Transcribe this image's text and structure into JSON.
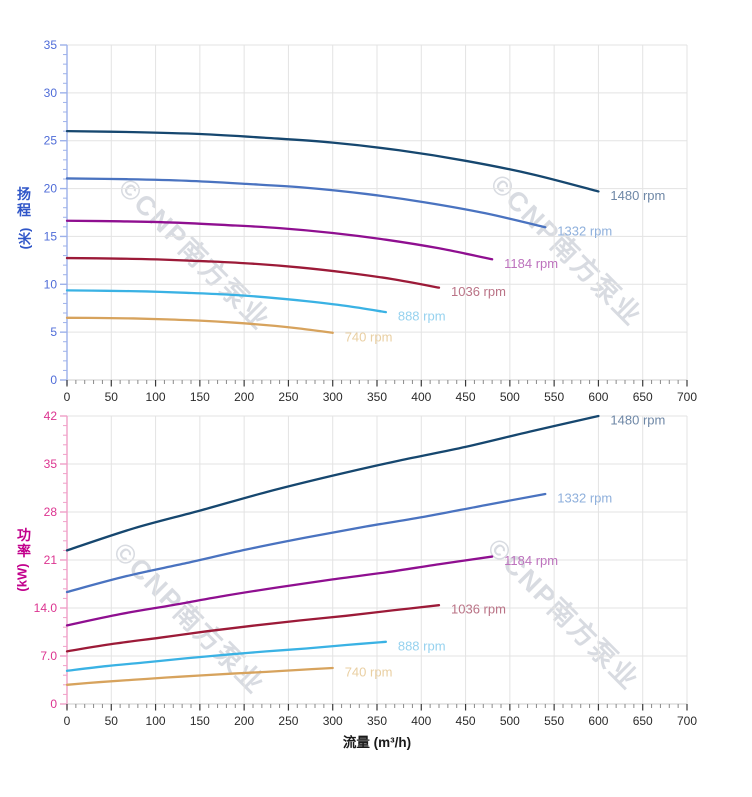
{
  "watermark": {
    "text": "©CNP南方泵业",
    "color": "rgba(125,135,155,0.30)"
  },
  "labels": {
    "head_title": "扬程",
    "head_unit": "(米)",
    "power_title": "功率",
    "power_unit": "(kW)",
    "flow_title": "流量 (m³/h)"
  },
  "style": {
    "grid_color": "#e3e3e3",
    "x_axis_line_color": "#cccccc",
    "x_major_tick_color": "#3a3a3a",
    "x_minor_tick_color": "#8a8a8a",
    "x_tick_label_color": "#2b2b2b",
    "flow_title_color": "#1a1a1a"
  },
  "chart_data": [
    {
      "type": "line",
      "title": "",
      "xlabel": "流量 (m³/h)",
      "ylabel": "扬程 (米)",
      "xlim": [
        0,
        700
      ],
      "ylim": [
        0,
        35
      ],
      "grid": true,
      "legend_position": "inline-right-of-curve-end",
      "x_tick_labels": [
        "0",
        "50",
        "100",
        "150",
        "200",
        "250",
        "300",
        "350",
        "400",
        "450",
        "500",
        "550",
        "600",
        "650",
        "700"
      ],
      "x_tick_values": [
        0,
        50,
        100,
        150,
        200,
        250,
        300,
        350,
        400,
        450,
        500,
        550,
        600,
        650,
        700
      ],
      "x_minor_step": 10,
      "y_tick_labels": [
        "0",
        "5",
        "10",
        "15",
        "20",
        "25",
        "30",
        "35"
      ],
      "y_tick_values": [
        0,
        5,
        10,
        15,
        20,
        25,
        30,
        35
      ],
      "y_minor_step": 1,
      "style": {
        "title_color": "#3056c8",
        "tick_label_color": "#4f6cd8",
        "axis_color": "#9db1ea"
      },
      "series": [
        {
          "name": "1480 rpm",
          "rpm": 1480,
          "color": "#16476f",
          "label_color": "#6e87a6",
          "x": [
            0,
            75,
            150,
            225,
            300,
            375,
            450,
            525,
            600
          ],
          "y": [
            26.0,
            25.9,
            25.7,
            25.3,
            24.8,
            24.0,
            22.9,
            21.5,
            19.7
          ]
        },
        {
          "name": "1332 rpm",
          "rpm": 1332,
          "color": "#4a73c0",
          "label_color": "#8fb0dc",
          "x": [
            0,
            67.5,
            135,
            202.5,
            270,
            337.5,
            405,
            472.5,
            540
          ],
          "y": [
            21.06,
            20.98,
            20.82,
            20.49,
            20.09,
            19.44,
            18.55,
            17.42,
            15.96
          ]
        },
        {
          "name": "1184 rpm",
          "rpm": 1184,
          "color": "#8f0f90",
          "label_color": "#bd72bd",
          "x": [
            0,
            60,
            120,
            180,
            240,
            300,
            360,
            420,
            480
          ],
          "y": [
            16.64,
            16.58,
            16.45,
            16.19,
            15.87,
            15.36,
            14.66,
            13.76,
            12.61
          ]
        },
        {
          "name": "1036 rpm",
          "rpm": 1036,
          "color": "#9c1a38",
          "label_color": "#ba7386",
          "x": [
            0,
            52.5,
            105,
            157.5,
            210,
            262.5,
            315,
            367.5,
            420
          ],
          "y": [
            12.74,
            12.69,
            12.59,
            12.4,
            12.15,
            11.76,
            11.22,
            10.54,
            9.65
          ]
        },
        {
          "name": "888 rpm",
          "rpm": 888,
          "color": "#3ab2e4",
          "label_color": "#96d2ef",
          "x": [
            0,
            45,
            90,
            135,
            180,
            225,
            270,
            315,
            360
          ],
          "y": [
            9.36,
            9.32,
            9.25,
            9.11,
            8.93,
            8.64,
            8.24,
            7.74,
            7.09
          ]
        },
        {
          "name": "740 rpm",
          "rpm": 740,
          "color": "#d7a35d",
          "label_color": "#e9cfa2",
          "x": [
            0,
            37.5,
            75,
            112.5,
            150,
            187.5,
            225,
            262.5,
            300
          ],
          "y": [
            6.5,
            6.48,
            6.43,
            6.33,
            6.2,
            6.0,
            5.73,
            5.38,
            4.93
          ]
        }
      ]
    },
    {
      "type": "line",
      "title": "",
      "xlabel": "流量 (m³/h)",
      "ylabel": "功率 (kW)",
      "xlim": [
        0,
        700
      ],
      "ylim": [
        0,
        42
      ],
      "grid": true,
      "legend_position": "inline-right-of-curve-end",
      "x_tick_labels": [
        "0",
        "50",
        "100",
        "150",
        "200",
        "250",
        "300",
        "350",
        "400",
        "450",
        "500",
        "550",
        "600",
        "650",
        "700"
      ],
      "x_tick_values": [
        0,
        50,
        100,
        150,
        200,
        250,
        300,
        350,
        400,
        450,
        500,
        550,
        600,
        650,
        700
      ],
      "x_minor_step": 10,
      "y_tick_labels": [
        "0",
        "7.0",
        "14.0",
        "21",
        "28",
        "35",
        "42"
      ],
      "y_tick_values": [
        0,
        7,
        14,
        21,
        28,
        35,
        42
      ],
      "y_minor_step": 1.4,
      "style": {
        "title_color": "#c2008c",
        "tick_label_color": "#dc3490",
        "axis_color": "#f0a0c8"
      },
      "series": [
        {
          "name": "1480 rpm",
          "rpm": 1480,
          "color": "#16476f",
          "label_color": "#6e87a6",
          "x": [
            0,
            75,
            150,
            225,
            300,
            375,
            450,
            525,
            600
          ],
          "y": [
            22.4,
            25.6,
            28.2,
            30.9,
            33.3,
            35.5,
            37.5,
            39.8,
            42.0
          ]
        },
        {
          "name": "1332 rpm",
          "rpm": 1332,
          "color": "#4a73c0",
          "label_color": "#8fb0dc",
          "x": [
            0,
            67.5,
            135,
            202.5,
            270,
            337.5,
            405,
            472.5,
            540
          ],
          "y": [
            16.33,
            18.66,
            20.56,
            22.53,
            24.28,
            25.88,
            27.34,
            29.01,
            30.62
          ]
        },
        {
          "name": "1184 rpm",
          "rpm": 1184,
          "color": "#8f0f90",
          "label_color": "#bd72bd",
          "x": [
            0,
            60,
            120,
            180,
            240,
            300,
            360,
            420,
            480
          ],
          "y": [
            11.47,
            13.11,
            14.44,
            15.82,
            17.05,
            18.18,
            19.2,
            20.38,
            21.5
          ]
        },
        {
          "name": "1036 rpm",
          "rpm": 1036,
          "color": "#9c1a38",
          "label_color": "#ba7386",
          "x": [
            0,
            52.5,
            105,
            157.5,
            210,
            262.5,
            315,
            367.5,
            420
          ],
          "y": [
            7.68,
            8.78,
            9.67,
            10.6,
            11.42,
            12.18,
            12.86,
            13.65,
            14.41
          ]
        },
        {
          "name": "888 rpm",
          "rpm": 888,
          "color": "#3ab2e4",
          "label_color": "#96d2ef",
          "x": [
            0,
            45,
            90,
            135,
            180,
            225,
            270,
            315,
            360
          ],
          "y": [
            4.84,
            5.53,
            6.09,
            6.67,
            7.19,
            7.67,
            8.1,
            8.6,
            9.07
          ]
        },
        {
          "name": "740 rpm",
          "rpm": 740,
          "color": "#d7a35d",
          "label_color": "#e9cfa2",
          "x": [
            0,
            37.5,
            75,
            112.5,
            150,
            187.5,
            225,
            262.5,
            300
          ],
          "y": [
            2.8,
            3.2,
            3.53,
            3.86,
            4.16,
            4.44,
            4.69,
            4.98,
            5.25
          ]
        }
      ]
    }
  ]
}
